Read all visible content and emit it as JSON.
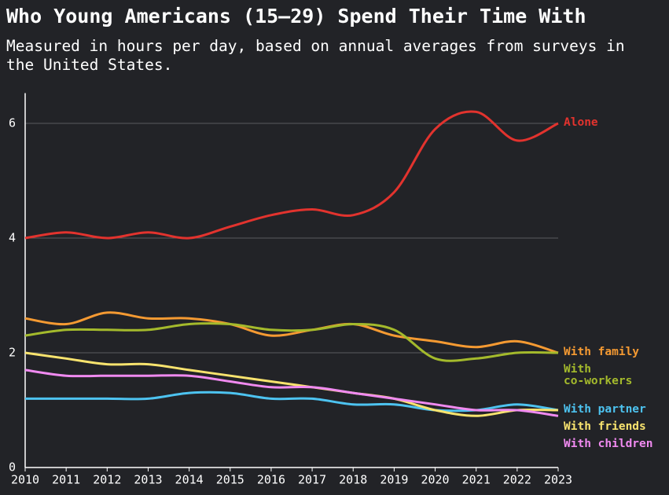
{
  "chart_data": {
    "type": "line",
    "title": "Who Young Americans (15–29) Spend Their Time With",
    "subtitle": "Measured in hours per day, based on annual averages from surveys in the United States.",
    "x": [
      2010,
      2011,
      2012,
      2013,
      2014,
      2015,
      2016,
      2017,
      2018,
      2019,
      2020,
      2021,
      2022,
      2023
    ],
    "xlim": [
      2010,
      2023
    ],
    "xticks": [
      2010,
      2011,
      2012,
      2013,
      2014,
      2015,
      2016,
      2017,
      2018,
      2019,
      2020,
      2021,
      2022,
      2023
    ],
    "ylim": [
      0,
      6.5
    ],
    "yticks": [
      0,
      2,
      4,
      6
    ],
    "grid": true,
    "series": [
      {
        "name": "Alone",
        "color": "#e2332e",
        "values": [
          4.0,
          4.1,
          4.0,
          4.1,
          4.0,
          4.2,
          4.4,
          4.5,
          4.4,
          4.8,
          5.9,
          6.2,
          5.7,
          6.0
        ]
      },
      {
        "name": "With family",
        "color": "#f59a32",
        "values": [
          2.6,
          2.5,
          2.7,
          2.6,
          2.6,
          2.5,
          2.3,
          2.4,
          2.5,
          2.3,
          2.2,
          2.1,
          2.2,
          2.0
        ]
      },
      {
        "name": "With\nco-workers",
        "color": "#a4ba2c",
        "values": [
          2.3,
          2.4,
          2.4,
          2.4,
          2.5,
          2.5,
          2.4,
          2.4,
          2.5,
          2.4,
          1.9,
          1.9,
          2.0,
          2.0
        ]
      },
      {
        "name": "With partner",
        "color": "#4dc3f0",
        "values": [
          1.2,
          1.2,
          1.2,
          1.2,
          1.3,
          1.3,
          1.2,
          1.2,
          1.1,
          1.1,
          1.0,
          1.0,
          1.1,
          1.0
        ]
      },
      {
        "name": "With friends",
        "color": "#f8e36e",
        "values": [
          2.0,
          1.9,
          1.8,
          1.8,
          1.7,
          1.6,
          1.5,
          1.4,
          1.3,
          1.2,
          1.0,
          0.9,
          1.0,
          1.0
        ]
      },
      {
        "name": "With children",
        "color": "#f08af0",
        "values": [
          1.7,
          1.6,
          1.6,
          1.6,
          1.6,
          1.5,
          1.4,
          1.4,
          1.3,
          1.2,
          1.1,
          1.0,
          1.0,
          0.9
        ]
      }
    ]
  }
}
